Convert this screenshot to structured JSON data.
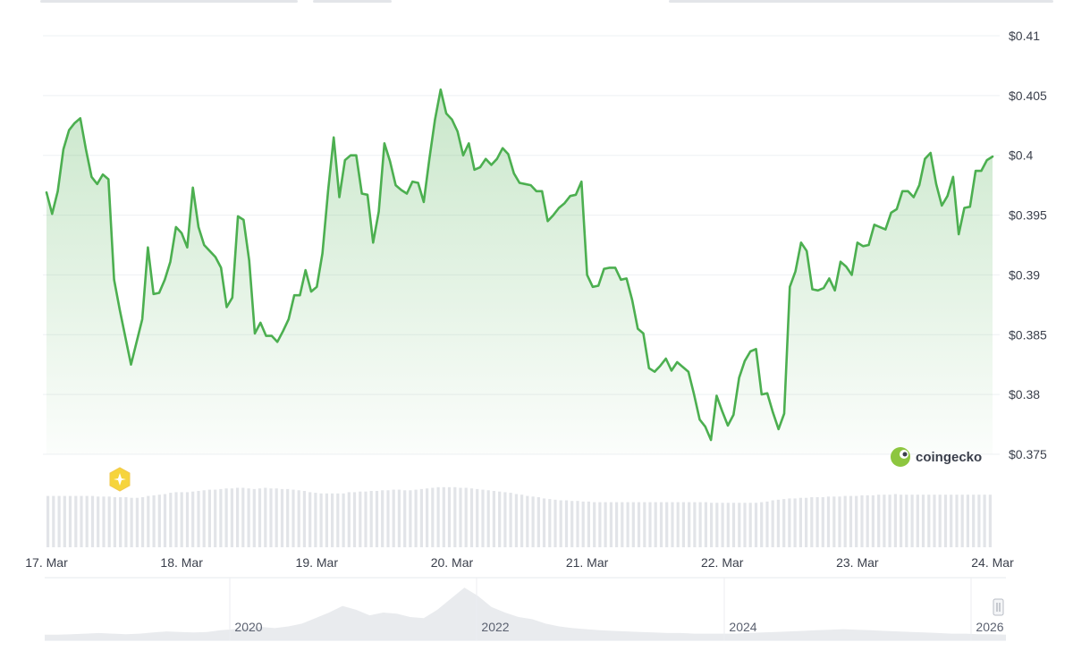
{
  "brand": {
    "name": "coingecko"
  },
  "colors": {
    "line": "#4caf50",
    "fill": "#4caf50",
    "grid": "#eef0f3",
    "volume": "#e2e4e8",
    "navigator": "#e9ebee"
  },
  "chart_data": {
    "type": "line",
    "title": "",
    "xlabel": "",
    "ylabel": "",
    "ylim": [
      0.375,
      0.41
    ],
    "yticks": [
      "$0.41",
      "$0.405",
      "$0.4",
      "$0.395",
      "$0.39",
      "$0.385",
      "$0.38",
      "$0.375"
    ],
    "ytick_values": [
      0.41,
      0.405,
      0.4,
      0.395,
      0.39,
      0.385,
      0.38,
      0.375
    ],
    "x_ticks": [
      {
        "label": "17. Mar",
        "day": 0
      },
      {
        "label": "18. Mar",
        "day": 1
      },
      {
        "label": "19. Mar",
        "day": 2
      },
      {
        "label": "20. Mar",
        "day": 3
      },
      {
        "label": "21. Mar",
        "day": 4
      },
      {
        "label": "22. Mar",
        "day": 5
      },
      {
        "label": "23. Mar",
        "day": 6
      },
      {
        "label": "24. Mar",
        "day": 7
      }
    ],
    "x_range_days": [
      0,
      7.0
    ],
    "series": [
      {
        "values": [
          0.3969,
          0.3951,
          0.397,
          0.4005,
          0.4021,
          0.4027,
          0.4031,
          0.4005,
          0.3982,
          0.3976,
          0.3984,
          0.398,
          0.3896,
          0.3871,
          0.3848,
          0.3825,
          0.3844,
          0.3863,
          0.3923,
          0.3884,
          0.3885,
          0.3896,
          0.3911,
          0.394,
          0.3935,
          0.3923,
          0.3973,
          0.394,
          0.3925,
          0.392,
          0.3915,
          0.3906,
          0.3873,
          0.3881,
          0.3949,
          0.3946,
          0.3912,
          0.3851,
          0.386,
          0.3849,
          0.3849,
          0.3844,
          0.3853,
          0.3863,
          0.3883,
          0.3883,
          0.3904,
          0.3886,
          0.389,
          0.3918,
          0.397,
          0.4015,
          0.3965,
          0.3996,
          0.4,
          0.4,
          0.3968,
          0.3967,
          0.3927,
          0.3953,
          0.401,
          0.3995,
          0.3975,
          0.3971,
          0.3968,
          0.3978,
          0.3977,
          0.3961,
          0.3997,
          0.403,
          0.4055,
          0.4035,
          0.403,
          0.402,
          0.4,
          0.401,
          0.3988,
          0.399,
          0.3997,
          0.3992,
          0.3997,
          0.4006,
          0.4001,
          0.3985,
          0.3977,
          0.3976,
          0.3975,
          0.397,
          0.397,
          0.3945,
          0.395,
          0.3956,
          0.396,
          0.3966,
          0.3967,
          0.3978,
          0.39,
          0.389,
          0.3891,
          0.3905,
          0.3906,
          0.3906,
          0.3896,
          0.3897,
          0.3879,
          0.3855,
          0.3851,
          0.3822,
          0.3819,
          0.3824,
          0.383,
          0.382,
          0.3827,
          0.3823,
          0.3819,
          0.38,
          0.3779,
          0.3773,
          0.3762,
          0.3799,
          0.3786,
          0.3774,
          0.3783,
          0.3814,
          0.3828,
          0.3836,
          0.3838,
          0.38,
          0.3801,
          0.3785,
          0.3771,
          0.3784,
          0.389,
          0.3903,
          0.3927,
          0.392,
          0.3888,
          0.3887,
          0.3889,
          0.3897,
          0.3887,
          0.3911,
          0.3907,
          0.39,
          0.3927,
          0.3924,
          0.3925,
          0.3942,
          0.394,
          0.3938,
          0.3952,
          0.3955,
          0.397,
          0.397,
          0.3965,
          0.3975,
          0.3997,
          0.4002,
          0.3976,
          0.3958,
          0.3966,
          0.3982,
          0.3934,
          0.3956,
          0.3957,
          0.3987,
          0.3987,
          0.3996,
          0.3999
        ]
      }
    ],
    "volume_relative": [
      0.82,
      0.82,
      0.82,
      0.82,
      0.82,
      0.82,
      0.82,
      0.82,
      0.82,
      0.81,
      0.81,
      0.81,
      0.8,
      0.8,
      0.8,
      0.79,
      0.79,
      0.8,
      0.82,
      0.83,
      0.84,
      0.85,
      0.87,
      0.88,
      0.88,
      0.88,
      0.89,
      0.9,
      0.91,
      0.92,
      0.92,
      0.93,
      0.94,
      0.94,
      0.95,
      0.95,
      0.94,
      0.93,
      0.94,
      0.95,
      0.94,
      0.94,
      0.93,
      0.93,
      0.92,
      0.91,
      0.9,
      0.88,
      0.87,
      0.86,
      0.86,
      0.86,
      0.86,
      0.86,
      0.88,
      0.88,
      0.89,
      0.89,
      0.9,
      0.9,
      0.91,
      0.91,
      0.92,
      0.92,
      0.91,
      0.91,
      0.92,
      0.93,
      0.94,
      0.95,
      0.96,
      0.96,
      0.96,
      0.96,
      0.95,
      0.95,
      0.94,
      0.93,
      0.92,
      0.91,
      0.9,
      0.89,
      0.88,
      0.87,
      0.85,
      0.84,
      0.82,
      0.81,
      0.8,
      0.78,
      0.77,
      0.76,
      0.75,
      0.75,
      0.74,
      0.74,
      0.73,
      0.73,
      0.72,
      0.72,
      0.72,
      0.72,
      0.72,
      0.72,
      0.72,
      0.72,
      0.72,
      0.72,
      0.72,
      0.72,
      0.72,
      0.72,
      0.72,
      0.72,
      0.72,
      0.72,
      0.72,
      0.72,
      0.72,
      0.71,
      0.71,
      0.71,
      0.71,
      0.71,
      0.71,
      0.71,
      0.71,
      0.71,
      0.72,
      0.73,
      0.75,
      0.76,
      0.77,
      0.78,
      0.78,
      0.79,
      0.79,
      0.8,
      0.8,
      0.8,
      0.81,
      0.81,
      0.81,
      0.82,
      0.82,
      0.82,
      0.83,
      0.83,
      0.83,
      0.84,
      0.84,
      0.84,
      0.85,
      0.84,
      0.84,
      0.84,
      0.84,
      0.84,
      0.84,
      0.84,
      0.84,
      0.84,
      0.84,
      0.84,
      0.84,
      0.84,
      0.84,
      0.84,
      0.84,
      0.84
    ],
    "grid": true,
    "navigator": {
      "labels": [
        "2020",
        "2022",
        "2024",
        "2026"
      ],
      "history_relative": [
        0.1,
        0.1,
        0.11,
        0.12,
        0.13,
        0.12,
        0.11,
        0.12,
        0.14,
        0.16,
        0.15,
        0.14,
        0.15,
        0.18,
        0.2,
        0.22,
        0.24,
        0.22,
        0.25,
        0.3,
        0.4,
        0.5,
        0.62,
        0.55,
        0.45,
        0.5,
        0.48,
        0.42,
        0.4,
        0.55,
        0.75,
        0.95,
        0.8,
        0.6,
        0.5,
        0.42,
        0.38,
        0.3,
        0.25,
        0.22,
        0.2,
        0.18,
        0.17,
        0.16,
        0.15,
        0.14,
        0.13,
        0.13,
        0.12,
        0.12,
        0.12,
        0.12,
        0.13,
        0.14,
        0.15,
        0.16,
        0.17,
        0.18,
        0.19,
        0.2,
        0.19,
        0.18,
        0.17,
        0.16,
        0.15,
        0.14,
        0.13,
        0.12,
        0.12,
        0.11,
        0.11,
        0.1
      ]
    }
  }
}
